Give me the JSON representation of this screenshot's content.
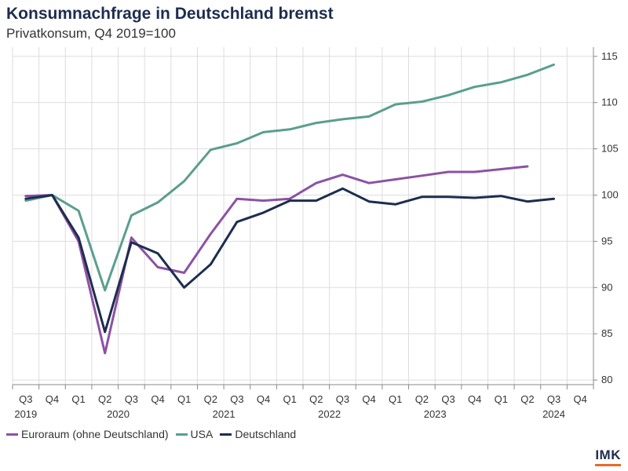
{
  "colors": {
    "euro": "#8c52a3",
    "usa": "#5a9f8d",
    "de": "#1d2d4f",
    "grid": "#dddddd",
    "axis": "#888888",
    "logo_accent": "#e8692b"
  },
  "chart_data": {
    "type": "line",
    "title": "Konsumnachfrage in Deutschland bremst",
    "subtitle": "Privatkonsum, Q4 2019=100",
    "x_quarters": [
      "Q3",
      "Q4",
      "Q1",
      "Q2",
      "Q3",
      "Q4",
      "Q1",
      "Q2",
      "Q3",
      "Q4",
      "Q1",
      "Q2",
      "Q3",
      "Q4",
      "Q1",
      "Q2",
      "Q3",
      "Q4",
      "Q1",
      "Q2",
      "Q3",
      "Q4"
    ],
    "x_years": [
      {
        "label": "2019",
        "index": 0
      },
      {
        "label": "2020",
        "index": 3.5
      },
      {
        "label": "2021",
        "index": 7.5
      },
      {
        "label": "2022",
        "index": 11.5
      },
      {
        "label": "2023",
        "index": 15.5
      },
      {
        "label": "2024",
        "index": 20
      }
    ],
    "ylim": [
      79.5,
      116
    ],
    "y_ticks": [
      80,
      85,
      90,
      95,
      100,
      105,
      110,
      115
    ],
    "series": [
      {
        "key": "euro",
        "name": "Euroraum (ohne Deutschland)",
        "values": [
          99.9,
          100.0,
          95.0,
          82.9,
          95.4,
          92.2,
          91.6,
          95.8,
          99.6,
          99.4,
          99.6,
          101.3,
          102.2,
          101.3,
          101.7,
          102.1,
          102.5,
          102.5,
          102.8,
          103.1,
          null,
          null
        ]
      },
      {
        "key": "usa",
        "name": "USA",
        "values": [
          99.4,
          100.0,
          98.3,
          89.7,
          97.8,
          99.2,
          101.5,
          104.9,
          105.6,
          106.8,
          107.1,
          107.8,
          108.2,
          108.5,
          109.8,
          110.1,
          110.8,
          111.7,
          112.2,
          113.0,
          114.1,
          null
        ]
      },
      {
        "key": "de",
        "name": "Deutschland",
        "values": [
          99.6,
          100.0,
          95.4,
          85.2,
          94.9,
          93.7,
          90.0,
          92.5,
          97.1,
          98.1,
          99.4,
          99.4,
          100.7,
          99.3,
          99.0,
          99.8,
          99.8,
          99.7,
          99.9,
          99.3,
          99.6,
          null
        ]
      }
    ]
  },
  "legend": [
    {
      "key": "euro",
      "label": "Euroraum (ohne Deutschland)"
    },
    {
      "key": "usa",
      "label": "USA"
    },
    {
      "key": "de",
      "label": "Deutschland"
    }
  ],
  "logo": {
    "text": "IMK"
  }
}
